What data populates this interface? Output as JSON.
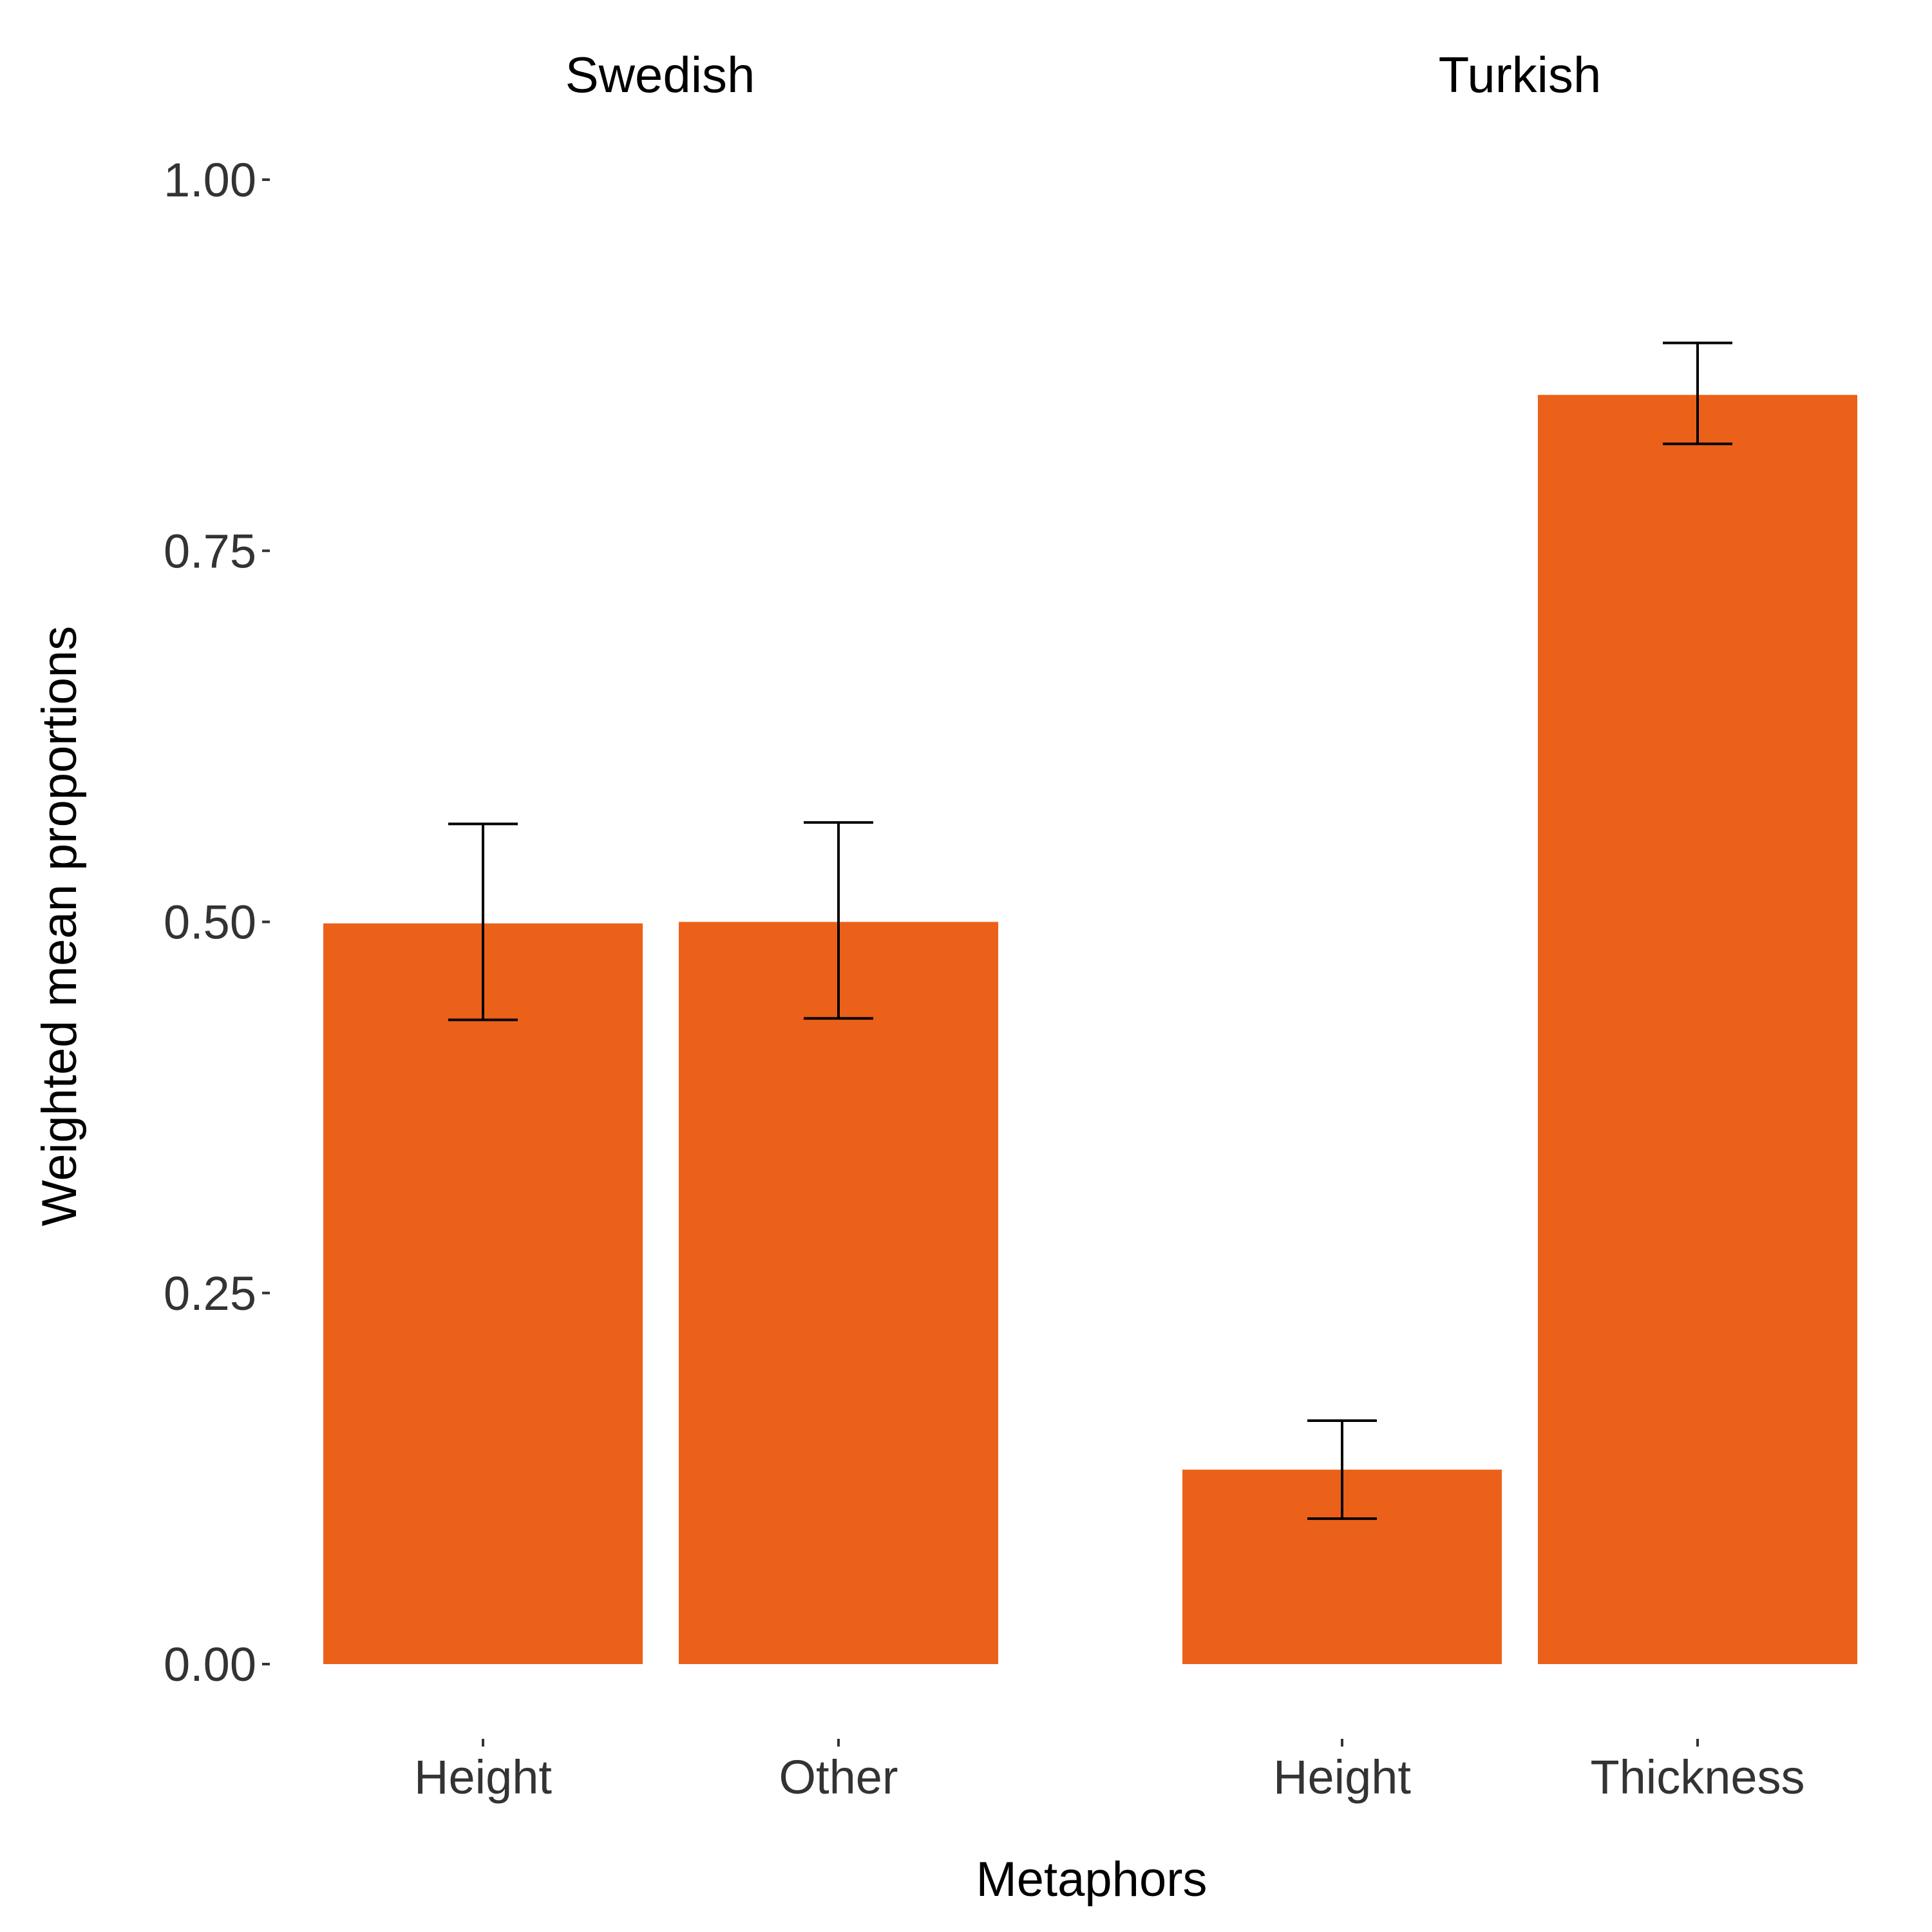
{
  "chart_data": {
    "type": "bar",
    "xlabel": "Metaphors",
    "ylabel": "Weighted mean proportions",
    "ylim": [
      0,
      1
    ],
    "yticks": [
      "0.00",
      "0.25",
      "0.50",
      "0.75",
      "1.00"
    ],
    "ytick_values": [
      0,
      0.25,
      0.5,
      0.75,
      1.0
    ],
    "grid": false,
    "bar_color": "#ec6119",
    "facets": [
      {
        "title": "Swedish",
        "categories": [
          "Height",
          "Other"
        ],
        "values": [
          0.499,
          0.5
        ],
        "error_low": [
          0.434,
          0.435
        ],
        "error_high": [
          0.566,
          0.567
        ]
      },
      {
        "title": "Turkish",
        "categories": [
          "Height",
          "Thickness"
        ],
        "values": [
          0.131,
          0.855
        ],
        "error_low": [
          0.098,
          0.822
        ],
        "error_high": [
          0.164,
          0.89
        ]
      }
    ]
  }
}
